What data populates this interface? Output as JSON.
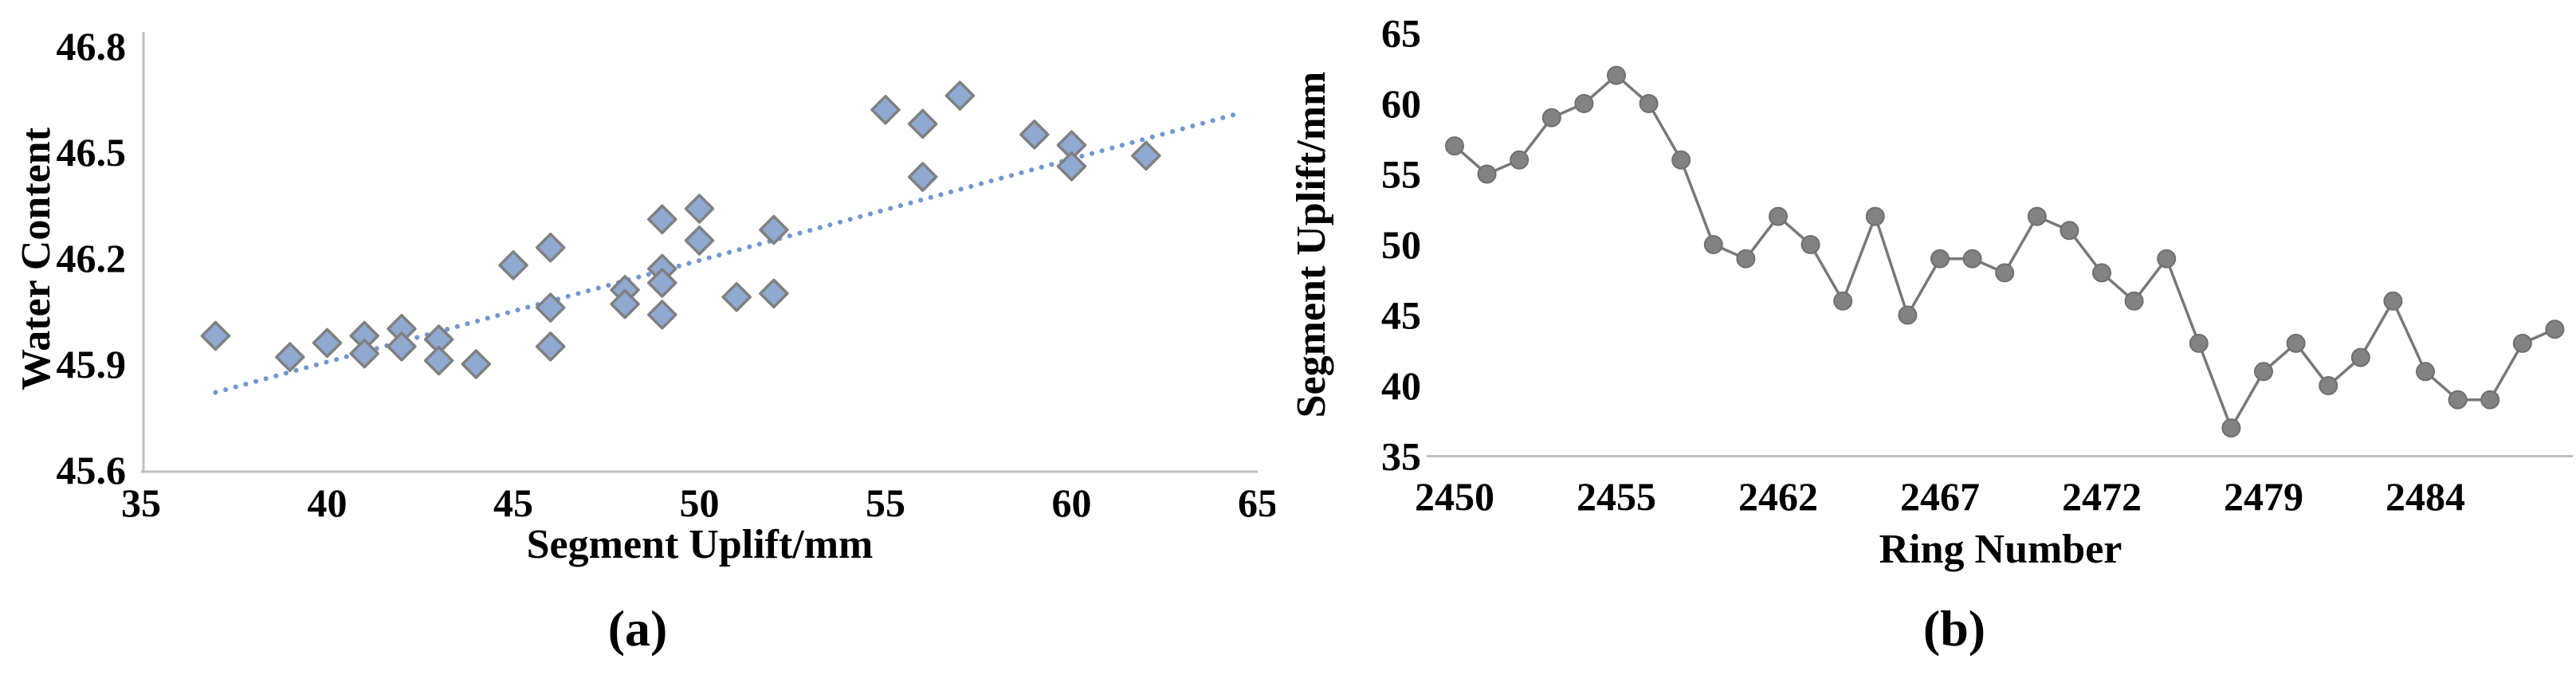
{
  "figure": {
    "caption_a": "(a)",
    "caption_b": "(b)"
  },
  "colors": {
    "scatter_fill": "#8fa9d1",
    "scatter_stroke": "#808080",
    "trendline": "#7097d0",
    "line_series": "#787878",
    "marker_fill": "#828282",
    "marker_stroke": "#6f6f6f",
    "axis_line": "#c0c0c0",
    "text": "#000000"
  },
  "chart_data": [
    {
      "id": "water-content-scatter",
      "type": "scatter",
      "title": "",
      "xlabel": "Segment Uplift/mm",
      "ylabel": "Water Content",
      "xlim": [
        35,
        65
      ],
      "ylim": [
        45.6,
        46.8
      ],
      "x_tick_labels": [
        "35",
        "40",
        "45",
        "50",
        "55",
        "60",
        "65"
      ],
      "x_tick_values": [
        35,
        40,
        45,
        50,
        55,
        60,
        65
      ],
      "y_tick_labels": [
        "45.6",
        "45.9",
        "46.2",
        "46.5",
        "46.8"
      ],
      "y_tick_values": [
        45.6,
        45.9,
        46.2,
        46.5,
        46.8
      ],
      "grid": false,
      "legend": "none",
      "marker": "diamond",
      "points": [
        [
          37,
          45.98
        ],
        [
          39,
          45.92
        ],
        [
          40,
          45.96
        ],
        [
          41,
          45.98
        ],
        [
          41,
          45.93
        ],
        [
          42,
          46.0
        ],
        [
          42,
          45.95
        ],
        [
          43,
          45.97
        ],
        [
          43,
          45.91
        ],
        [
          44,
          45.9
        ],
        [
          45,
          46.18
        ],
        [
          46,
          46.23
        ],
        [
          46,
          46.06
        ],
        [
          46,
          45.95
        ],
        [
          48,
          46.11
        ],
        [
          48,
          46.07
        ],
        [
          49,
          46.31
        ],
        [
          49,
          46.17
        ],
        [
          49,
          46.13
        ],
        [
          49,
          46.04
        ],
        [
          50,
          46.34
        ],
        [
          50,
          46.25
        ],
        [
          51,
          46.09
        ],
        [
          52,
          46.28
        ],
        [
          52,
          46.1
        ],
        [
          55,
          46.62
        ],
        [
          56,
          46.58
        ],
        [
          56,
          46.43
        ],
        [
          57,
          46.66
        ],
        [
          59,
          46.55
        ],
        [
          60,
          46.52
        ],
        [
          60,
          46.46
        ],
        [
          62,
          46.49
        ]
      ],
      "trendline": {
        "style": "dotted",
        "x1": 37,
        "y1": 45.82,
        "x2": 64.5,
        "y2": 46.61
      }
    },
    {
      "id": "ring-uplift-line",
      "type": "line",
      "title": "",
      "xlabel": "Ring Number",
      "ylabel": "Segment Uplift/mm",
      "ylim": [
        35,
        65
      ],
      "y_tick_labels": [
        "65",
        "60",
        "55",
        "50",
        "45",
        "40",
        "35"
      ],
      "y_tick_values": [
        65,
        60,
        55,
        50,
        45,
        40,
        35
      ],
      "x_tick_labels": [
        "2450",
        "2455",
        "2462",
        "2467",
        "2472",
        "2479",
        "2484"
      ],
      "x_tick_indices": [
        0,
        5,
        10,
        15,
        20,
        25,
        30
      ],
      "grid": false,
      "legend": "none",
      "marker": "circle",
      "values": [
        57,
        55,
        56,
        59,
        60,
        62,
        60,
        56,
        50,
        49,
        52,
        50,
        46,
        52,
        45,
        49,
        49,
        48,
        52,
        51,
        48,
        46,
        49,
        43,
        37,
        41,
        43,
        40,
        42,
        46,
        41,
        39,
        39,
        43,
        44
      ]
    }
  ]
}
